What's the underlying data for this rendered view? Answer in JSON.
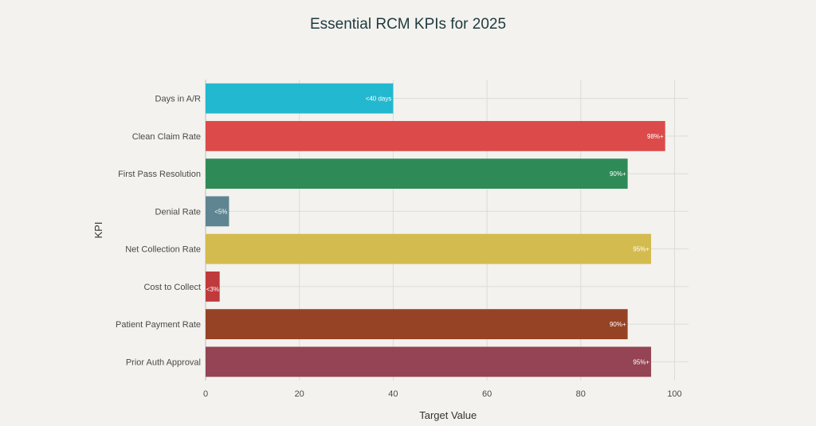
{
  "chart_data": {
    "type": "bar",
    "orientation": "horizontal",
    "title": "Essential RCM KPIs for 2025",
    "xlabel": "Target Value",
    "ylabel": "KPI",
    "xlim": [
      0,
      103
    ],
    "xticks": [
      0,
      20,
      40,
      60,
      80,
      100
    ],
    "grid": true,
    "categories": [
      "Days in A/R",
      "Clean Claim Rate",
      "First Pass Resolution",
      "Denial Rate",
      "Net Collection Rate",
      "Cost to Collect",
      "Patient Payment Rate",
      "Prior Auth Approval"
    ],
    "values": [
      40,
      98,
      90,
      5,
      95,
      3,
      90,
      95
    ],
    "data_labels": [
      "<40 days",
      "98%+",
      "90%+",
      "<5%",
      "95%+",
      "<3%",
      "90%+",
      "95%+"
    ],
    "colors": [
      "#22b8cf",
      "#dc4a4a",
      "#2e8b57",
      "#5f8593",
      "#d4bb4f",
      "#c0393b",
      "#964325",
      "#944454"
    ]
  }
}
